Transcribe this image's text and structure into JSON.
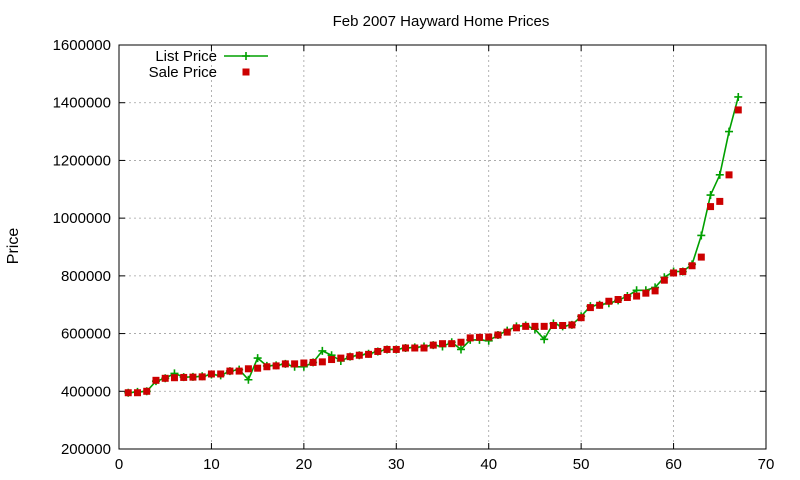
{
  "chart_data": {
    "type": "line",
    "title": "Feb 2007 Hayward Home Prices",
    "xlabel": "",
    "ylabel": "Price",
    "xlim": [
      0,
      70
    ],
    "ylim": [
      200000,
      1600000
    ],
    "xticks": [
      0,
      10,
      20,
      30,
      40,
      50,
      60,
      70
    ],
    "yticks": [
      200000,
      400000,
      600000,
      800000,
      1000000,
      1200000,
      1400000,
      1600000
    ],
    "grid": true,
    "legend": "top-left",
    "colors": {
      "list": "#00a000",
      "sale": "#cc0000"
    },
    "series": [
      {
        "name": "List Price",
        "style": "line-plus",
        "x": [
          1,
          2,
          3,
          4,
          5,
          6,
          7,
          8,
          9,
          10,
          11,
          12,
          13,
          14,
          15,
          16,
          17,
          18,
          19,
          20,
          21,
          22,
          23,
          24,
          25,
          26,
          27,
          28,
          29,
          30,
          31,
          32,
          33,
          34,
          35,
          36,
          37,
          38,
          39,
          40,
          41,
          42,
          43,
          44,
          45,
          46,
          47,
          48,
          49,
          50,
          51,
          52,
          53,
          54,
          55,
          56,
          57,
          58,
          59,
          60,
          61,
          62,
          63,
          64,
          65,
          66,
          67
        ],
        "y": [
          395000,
          398000,
          400000,
          435000,
          445000,
          462000,
          449000,
          450000,
          452000,
          458000,
          455000,
          470000,
          475000,
          440000,
          515000,
          488000,
          490000,
          495000,
          485000,
          485000,
          500000,
          540000,
          525000,
          505000,
          520000,
          525000,
          530000,
          538000,
          545000,
          545000,
          550000,
          552000,
          555000,
          560000,
          555000,
          570000,
          545000,
          578000,
          578000,
          575000,
          595000,
          610000,
          625000,
          628000,
          615000,
          580000,
          635000,
          625000,
          630000,
          660000,
          695000,
          700000,
          705000,
          715000,
          730000,
          750000,
          750000,
          760000,
          795000,
          815000,
          815000,
          840000,
          940000,
          1080000,
          1150000,
          1300000,
          1420000
        ]
      },
      {
        "name": "Sale Price",
        "style": "points-square",
        "x": [
          1,
          2,
          3,
          4,
          5,
          6,
          7,
          8,
          9,
          10,
          11,
          12,
          13,
          14,
          15,
          16,
          17,
          18,
          19,
          20,
          21,
          22,
          23,
          24,
          25,
          26,
          27,
          28,
          29,
          30,
          31,
          32,
          33,
          34,
          35,
          36,
          37,
          38,
          39,
          40,
          41,
          42,
          43,
          44,
          45,
          46,
          47,
          48,
          49,
          50,
          51,
          52,
          53,
          54,
          55,
          56,
          57,
          58,
          59,
          60,
          61,
          62,
          63,
          64,
          65,
          66,
          67
        ],
        "y": [
          395000,
          395000,
          400000,
          438000,
          445000,
          447000,
          448000,
          449000,
          450000,
          460000,
          460000,
          470000,
          470000,
          478000,
          480000,
          485000,
          488000,
          495000,
          495000,
          498000,
          500000,
          502000,
          510000,
          515000,
          520000,
          525000,
          528000,
          538000,
          545000,
          545000,
          550000,
          550000,
          550000,
          560000,
          565000,
          565000,
          570000,
          585000,
          587000,
          588000,
          595000,
          605000,
          620000,
          625000,
          625000,
          625000,
          628000,
          628000,
          630000,
          655000,
          690000,
          698000,
          712000,
          718000,
          725000,
          730000,
          740000,
          748000,
          785000,
          810000,
          815000,
          835000,
          865000,
          1040000,
          1058000,
          1150000,
          1375000
        ]
      }
    ]
  }
}
